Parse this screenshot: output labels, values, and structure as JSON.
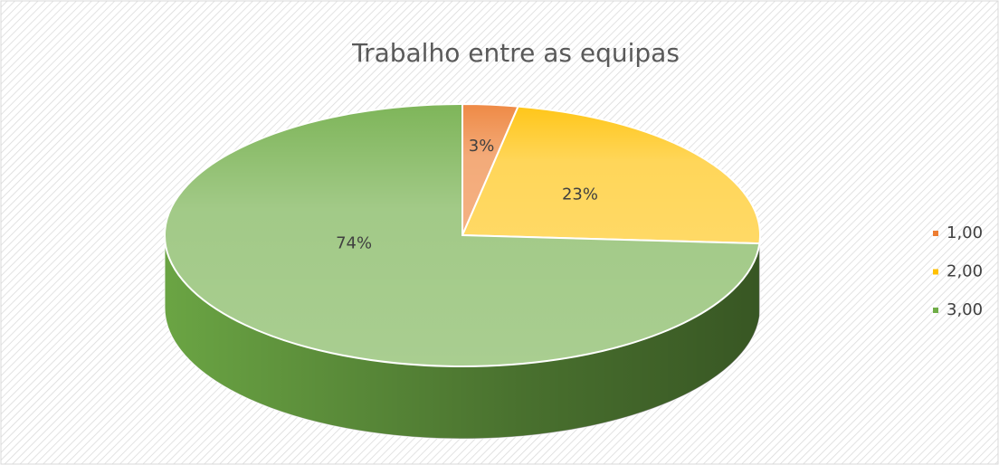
{
  "chart_data": {
    "type": "pie",
    "title": "Trabalho entre as equipas",
    "categories": [
      "1,00",
      "2,00",
      "3,00"
    ],
    "values": [
      3,
      23,
      74
    ],
    "value_labels": [
      "3%",
      "23%",
      "74%"
    ],
    "colors": [
      "#ed7d31",
      "#ffc000",
      "#70ad47"
    ],
    "legend": "right"
  }
}
